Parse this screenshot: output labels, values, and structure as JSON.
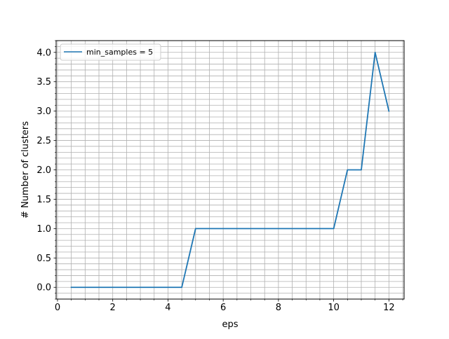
{
  "chart_data": {
    "type": "line",
    "title": "",
    "xlabel": "eps",
    "ylabel": "# Number of clusters",
    "xlim": [
      -0.05,
      12.55
    ],
    "ylim": [
      -0.2,
      4.2
    ],
    "x_major_ticks": [
      0,
      2,
      4,
      6,
      8,
      10,
      12
    ],
    "x_minor_step": 0.5,
    "y_major_ticks": [
      0.0,
      0.5,
      1.0,
      1.5,
      2.0,
      2.5,
      3.0,
      3.5,
      4.0
    ],
    "y_minor_step": 0.1,
    "grid": true,
    "legend_position": "upper-left",
    "series": [
      {
        "name": "min_samples = 5",
        "color": "#1f77b4",
        "x": [
          0.5,
          1.0,
          1.5,
          2.0,
          2.5,
          3.0,
          3.5,
          4.0,
          4.5,
          5.0,
          5.5,
          6.0,
          6.5,
          7.0,
          7.5,
          8.0,
          8.5,
          9.0,
          9.5,
          10.0,
          10.5,
          11.0,
          11.5,
          12.0
        ],
        "y": [
          0,
          0,
          0,
          0,
          0,
          0,
          0,
          0,
          0,
          1,
          1,
          1,
          1,
          1,
          1,
          1,
          1,
          1,
          1,
          1,
          2,
          2,
          4,
          3
        ]
      }
    ]
  }
}
